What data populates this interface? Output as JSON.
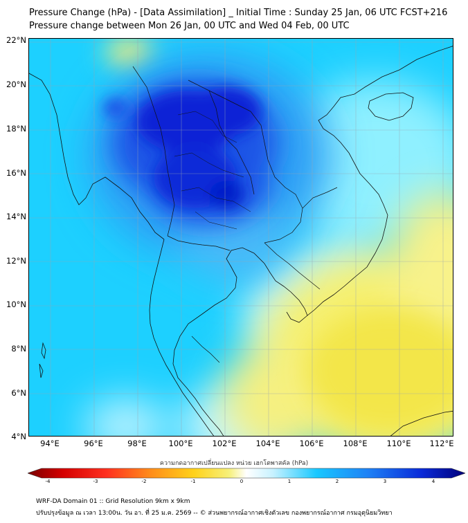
{
  "header": {
    "title_line1": "Pressure Change (hPa) - [Data Assimilation] _ Initial Time : Sunday 25 Jan, 06 UTC FCST+216",
    "title_line2": "Pressure change between Mon 26 Jan, 00 UTC and Wed 04 Feb, 00 UTC"
  },
  "map": {
    "lat_labels": [
      "22°N",
      "20°N",
      "18°N",
      "16°N",
      "14°N",
      "12°N",
      "10°N",
      "8°N",
      "6°N",
      "4°N"
    ],
    "lon_labels": [
      "94°E",
      "96°E",
      "98°E",
      "100°E",
      "102°E",
      "104°E",
      "106°E",
      "108°E",
      "110°E",
      "112°E"
    ],
    "lat_range": [
      4,
      22
    ],
    "lon_range": [
      93,
      112.5
    ],
    "field_description_colors": {
      "strong_fall": "#0a1ed8",
      "moderate_fall": "#2f74f0",
      "slight_fall": "#19c8ff",
      "near_zero": "#e8f6ff",
      "slight_rise": "#f5ef6a",
      "moderate_rise": "#f4e64a"
    }
  },
  "colorbar": {
    "title": "ความกดอากาศเปลี่ยนแปลง หน่วย เฮกโตพาสคัล (hPa)",
    "ticks": [
      "-4",
      "-3",
      "-2",
      "-1",
      "0",
      "1",
      "2",
      "3",
      "4"
    ],
    "min": -4,
    "max": 4
  },
  "footer": {
    "line1": "WRF-DA Domain 01 :: Grid Resolution 9km x 9km",
    "line2": "ปรับปรุงข้อมูล ณ เวลา 13:00น. วัน อา. ที่ 25 ม.ค. 2569 -- © ส่วนพยากรณ์อากาศเชิงตัวเลข กองพยากรณ์อากาศ กรมอุตุนิยมวิทยา"
  }
}
